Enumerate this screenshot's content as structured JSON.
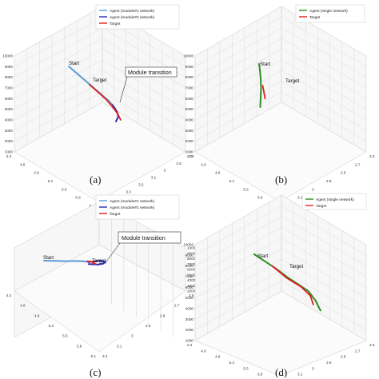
{
  "figure": {
    "panels": [
      {
        "id": "a",
        "label_text": "(a)",
        "legend": [
          "Agent (module#1 network)",
          "Agent (module#2 network)",
          "Target"
        ],
        "annotations": {
          "start": "Start",
          "target": "Target",
          "callout": "Module transition"
        },
        "z_ticks": [
          "10000",
          "9000",
          "8000",
          "7000",
          "6000",
          "5000",
          "4000",
          "3000",
          "2000",
          "1000"
        ],
        "x_ticks": [
          "4.3",
          "4.6",
          "4.9",
          "5.2",
          "5.5",
          "5.8",
          "6.1"
        ],
        "y_ticks": [
          "2.8",
          "2.9",
          "3",
          "3.1",
          "3.2",
          "3.3",
          "3.4",
          "3.5"
        ]
      },
      {
        "id": "b",
        "label_text": "(b)",
        "legend": [
          "Agent (single network)",
          "Target"
        ],
        "annotations": {
          "start": "Start",
          "target": "Target",
          "callout": ""
        },
        "z_ticks": [
          "10000",
          "9000",
          "8000",
          "7000",
          "6000",
          "5000",
          "4000",
          "3000",
          "2000",
          "1000"
        ],
        "x_ticks": [
          "4.3",
          "4.6",
          "4.9",
          "5.2",
          "5.5",
          "5.8",
          "6.1"
        ],
        "y_ticks": [
          "2.6",
          "2.7",
          "2.8",
          "2.9",
          "3",
          "3.1",
          "3.2"
        ]
      },
      {
        "id": "c",
        "label_text": "(c)",
        "legend": [
          "Agent (module#1 network)",
          "Agent (module#2 network)",
          "Target"
        ],
        "annotations": {
          "start": "Start",
          "target": "Target",
          "callout": "Module transition"
        },
        "z_ticks": [
          "10000",
          "9000",
          "8000",
          "7000",
          "6000",
          "5000",
          "4000",
          "3000",
          "2000"
        ],
        "x_ticks": [
          "4.3",
          "4.6",
          "4.9",
          "5.2",
          "5.5",
          "5.8",
          "6.1"
        ],
        "y_ticks": [
          "2.6",
          "2.7",
          "2.8",
          "2.9",
          "3",
          "3.1",
          "3.2"
        ]
      },
      {
        "id": "d",
        "label_text": "(d)",
        "legend": [
          "Agent (single network)",
          "Target"
        ],
        "annotations": {
          "start": "Start",
          "target": "Target",
          "callout": ""
        },
        "z_ticks": [
          "10000",
          "9000",
          "8000",
          "7000",
          "6000",
          "5000",
          "4000",
          "3000",
          "2000",
          "1000"
        ],
        "x_ticks": [
          "4.3",
          "4.6",
          "4.9",
          "5.2",
          "5.5",
          "5.8",
          "6.1"
        ],
        "y_ticks": [
          "2.6",
          "2.7",
          "2.8",
          "2.9",
          "3",
          "3.1",
          "3.2"
        ]
      }
    ]
  },
  "colors": {
    "module1": "#5b9bd5",
    "module2": "#2b2bb8",
    "target": "#e02020",
    "single": "#2e8b22"
  },
  "chart_data": [
    {
      "type": "line",
      "panel": "a",
      "series": [
        {
          "name": "Agent (module#1 network)",
          "points": [
            [
              0,
              0
            ],
            [
              0.1,
              0.09
            ],
            [
              0.2,
              0.18
            ],
            [
              0.3,
              0.27
            ],
            [
              0.4,
              0.36
            ],
            [
              0.5,
              0.45
            ],
            [
              0.6,
              0.54
            ],
            [
              0.7,
              0.63
            ],
            [
              0.76,
              0.7
            ]
          ]
        },
        {
          "name": "Agent (module#2 network)",
          "points": [
            [
              0.76,
              0.7
            ],
            [
              0.8,
              0.76
            ],
            [
              0.84,
              0.83
            ],
            [
              0.86,
              0.91
            ],
            [
              0.82,
              1.0
            ]
          ]
        },
        {
          "name": "Target",
          "points": [
            [
              0.36,
              0.33
            ],
            [
              0.5,
              0.46
            ],
            [
              0.65,
              0.6
            ],
            [
              0.75,
              0.72
            ],
            [
              0.85,
              0.86
            ],
            [
              0.9,
              0.97
            ]
          ]
        }
      ]
    },
    {
      "type": "line",
      "panel": "b",
      "series": [
        {
          "name": "Agent (single network)",
          "points": [
            [
              0,
              0
            ],
            [
              0.1,
              0.12
            ],
            [
              0.2,
              0.3
            ],
            [
              0.25,
              0.5
            ],
            [
              0.2,
              0.7
            ],
            [
              0.15,
              0.9
            ]
          ]
        },
        {
          "name": "Target",
          "points": [
            [
              0.45,
              0.45
            ],
            [
              0.6,
              0.58
            ],
            [
              0.75,
              0.72
            ]
          ]
        }
      ]
    },
    {
      "type": "line",
      "panel": "c",
      "series": [
        {
          "name": "Agent (module#1 network)",
          "points": [
            [
              0,
              0
            ],
            [
              0.15,
              0.02
            ],
            [
              0.3,
              0.04
            ],
            [
              0.45,
              0.03
            ],
            [
              0.55,
              0.06
            ],
            [
              0.62,
              0.12
            ]
          ]
        },
        {
          "name": "Agent (module#2 network)",
          "points": [
            [
              0.62,
              0.12
            ],
            [
              0.78,
              0.0
            ],
            [
              0.85,
              0.1
            ],
            [
              0.82,
              0.28
            ],
            [
              0.75,
              0.35
            ],
            [
              0.62,
              0.3
            ]
          ]
        },
        {
          "name": "Target",
          "points": [
            [
              0.6,
              0.05
            ],
            [
              0.7,
              0.12
            ],
            [
              0.68,
              0.22
            ],
            [
              0.72,
              0.3
            ]
          ]
        }
      ]
    },
    {
      "type": "line",
      "panel": "d",
      "series": [
        {
          "name": "Agent (single network)",
          "points": [
            [
              0,
              0
            ],
            [
              0.15,
              0.12
            ],
            [
              0.3,
              0.24
            ],
            [
              0.45,
              0.38
            ],
            [
              0.6,
              0.5
            ],
            [
              0.75,
              0.62
            ],
            [
              0.85,
              0.78
            ],
            [
              0.92,
              0.95
            ]
          ]
        },
        {
          "name": "Target",
          "points": [
            [
              0.25,
              0.2
            ],
            [
              0.45,
              0.4
            ],
            [
              0.65,
              0.55
            ],
            [
              0.78,
              0.7
            ],
            [
              0.82,
              0.85
            ]
          ]
        }
      ]
    }
  ]
}
